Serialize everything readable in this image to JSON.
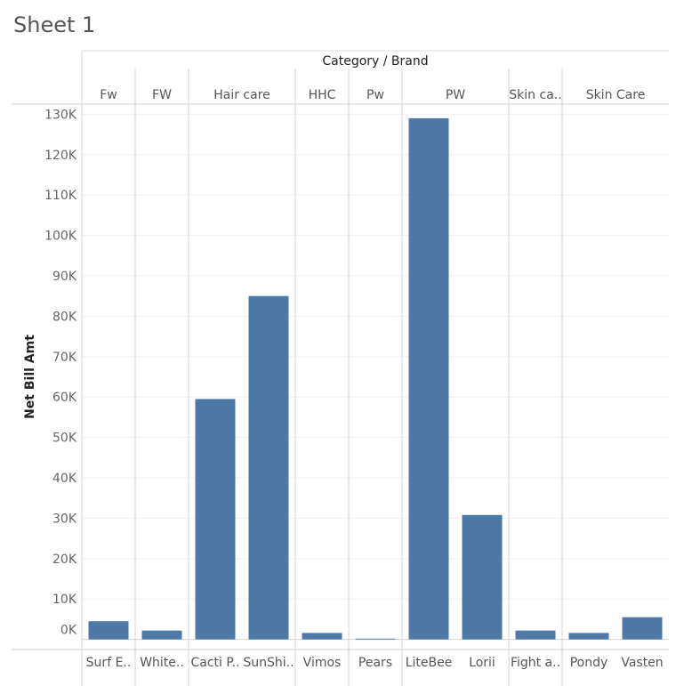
{
  "sheet": {
    "title": "Sheet 1"
  },
  "chart_data": {
    "type": "bar",
    "title": "",
    "header_title": "Category / Brand",
    "ylabel": "Net Bill Amt",
    "xlabel": "",
    "ylim": [
      -2500,
      132500
    ],
    "yticks": [
      0,
      10000,
      20000,
      30000,
      40000,
      50000,
      60000,
      70000,
      80000,
      90000,
      100000,
      110000,
      120000,
      130000
    ],
    "ytick_labels": [
      "0K",
      "10K",
      "20K",
      "30K",
      "40K",
      "50K",
      "60K",
      "70K",
      "80K",
      "90K",
      "100K",
      "110K",
      "120K",
      "130K"
    ],
    "bar_color": "#4e79a7",
    "grid": true,
    "groups": [
      {
        "category": "Fw",
        "brands": [
          "Surf E.."
        ],
        "values": [
          4500
        ]
      },
      {
        "category": "FW",
        "brands": [
          "White.."
        ],
        "values": [
          2200
        ]
      },
      {
        "category": "Hair care",
        "brands": [
          "Cacti P..",
          "SunShi.."
        ],
        "values": [
          59500,
          85000
        ]
      },
      {
        "category": "HHC",
        "brands": [
          "Vimos"
        ],
        "values": [
          1600
        ]
      },
      {
        "category": "Pw",
        "brands": [
          "Pears"
        ],
        "values": [
          200
        ]
      },
      {
        "category": "PW",
        "brands": [
          "LiteBee",
          "Lorii"
        ],
        "values": [
          129000,
          30800
        ]
      },
      {
        "category": "Skin ca..",
        "brands": [
          "Fight a.."
        ],
        "values": [
          2200
        ]
      },
      {
        "category": "Skin Care",
        "brands": [
          "Pondy",
          "Vasten"
        ],
        "values": [
          1600,
          5500
        ]
      }
    ]
  }
}
